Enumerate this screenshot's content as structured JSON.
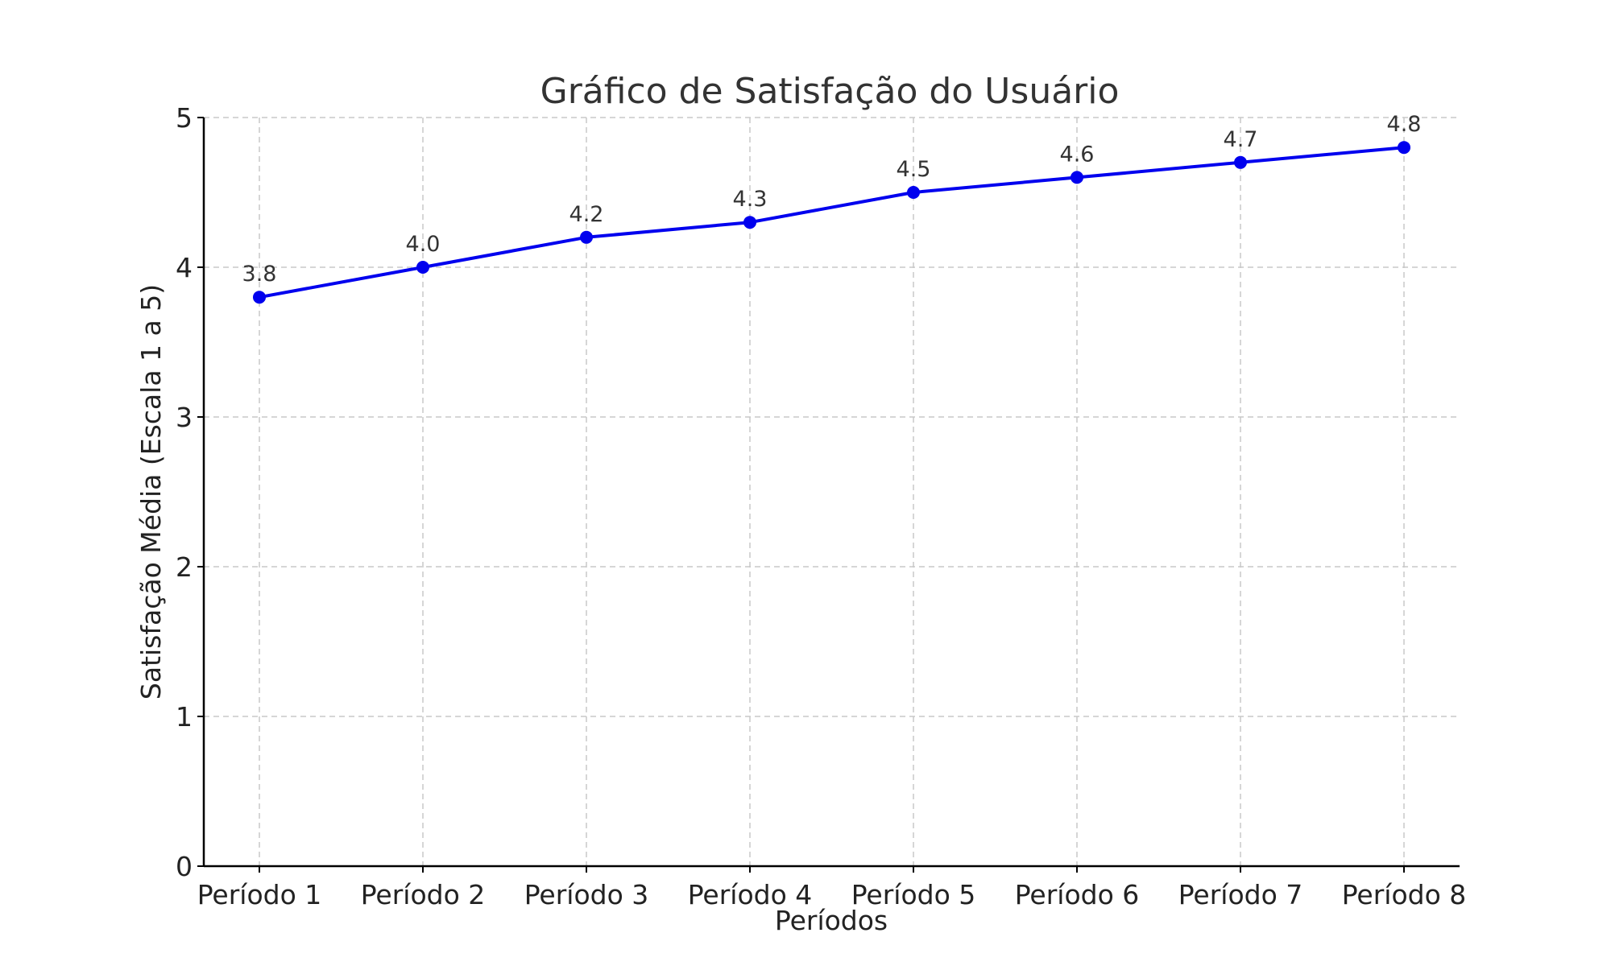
{
  "chart_data": {
    "type": "line",
    "title": "Gráfico de Satisfação do Usuário",
    "xlabel": "Períodos",
    "ylabel": "Satisfação Média (Escala 1 a 5)",
    "categories": [
      "Período 1",
      "Período 2",
      "Período 3",
      "Período 4",
      "Período 5",
      "Período 6",
      "Período 7",
      "Período 8"
    ],
    "series": [
      {
        "values": [
          3.8,
          4.0,
          4.2,
          4.3,
          4.5,
          4.6,
          4.7,
          4.8
        ],
        "color": "#0000ee",
        "marker": "circle"
      }
    ],
    "data_labels": [
      "3.8",
      "4.0",
      "4.2",
      "4.3",
      "4.5",
      "4.6",
      "4.7",
      "4.8"
    ],
    "ylim": [
      0,
      5
    ],
    "yticks": [
      "0",
      "1",
      "2",
      "3",
      "4",
      "5"
    ],
    "grid": true,
    "legend": "none"
  }
}
